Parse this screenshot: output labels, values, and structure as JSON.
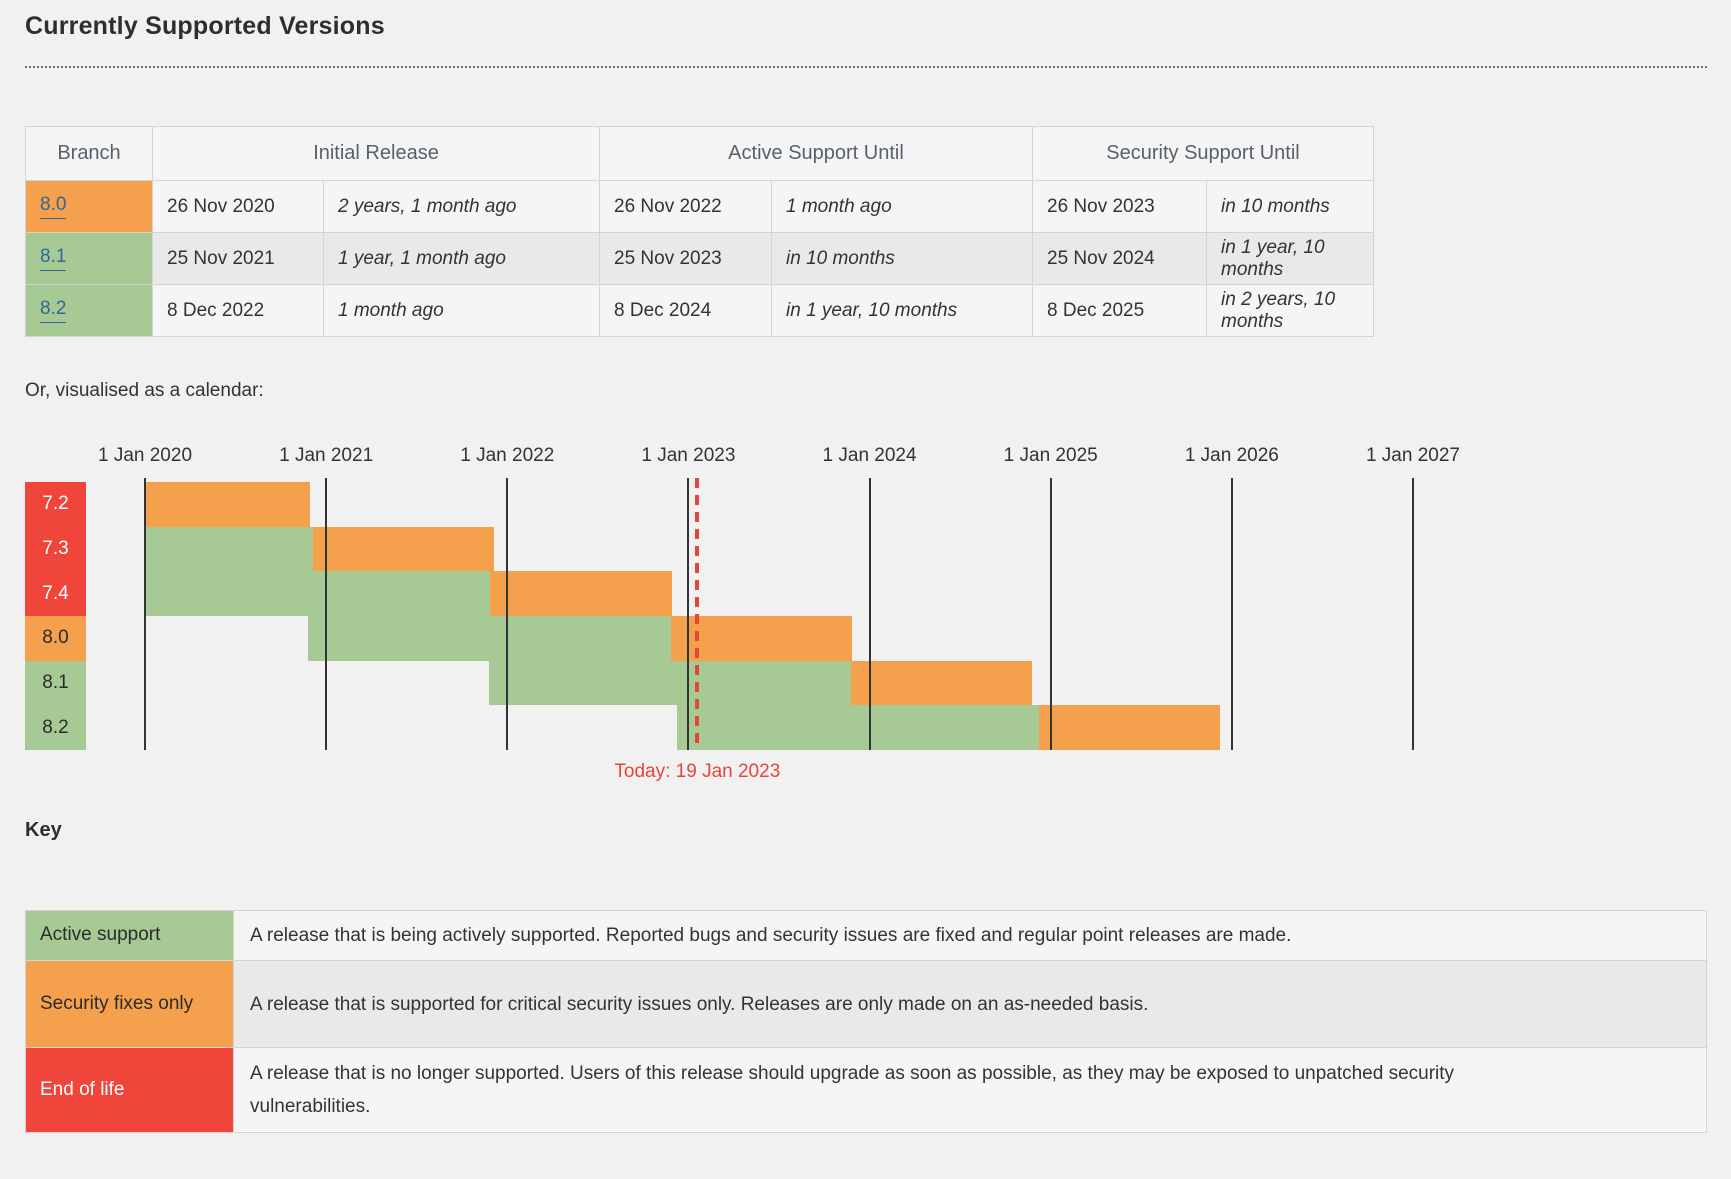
{
  "page": {
    "title": "Currently Supported Versions",
    "calendar_intro": "Or, visualised as a calendar:",
    "key_title": "Key"
  },
  "colors": {
    "active": "#a7ca95",
    "security": "#f4a04d",
    "eol": "#ef453b",
    "link_blue": "#336699",
    "today_red": "#e8453a",
    "label_dark_text": "#2b2b2b",
    "label_light_text": "#ffffff"
  },
  "support_table": {
    "headers": {
      "branch": "Branch",
      "initial": "Initial Release",
      "active": "Active Support Until",
      "security": "Security Support Until"
    },
    "rows": [
      {
        "branch": "8.0",
        "status": "security",
        "initial_date": "26 Nov 2020",
        "initial_rel": "2 years, 1 month ago",
        "active_date": "26 Nov 2022",
        "active_rel": "1 month ago",
        "security_date": "26 Nov 2023",
        "security_rel": "in 10 months"
      },
      {
        "branch": "8.1",
        "status": "active",
        "initial_date": "25 Nov 2021",
        "initial_rel": "1 year, 1 month ago",
        "active_date": "25 Nov 2023",
        "active_rel": "in 10 months",
        "security_date": "25 Nov 2024",
        "security_rel": "in 1 year, 10 months"
      },
      {
        "branch": "8.2",
        "status": "active",
        "initial_date": "8 Dec 2022",
        "initial_rel": "1 month ago",
        "active_date": "8 Dec 2024",
        "active_rel": "in 1 year, 10 months",
        "security_date": "8 Dec 2025",
        "security_rel": "in 2 years, 10 months"
      }
    ]
  },
  "chart_data": {
    "type": "gantt",
    "title": "PHP supported versions calendar",
    "x_ticks": [
      "1 Jan 2020",
      "1 Jan 2021",
      "1 Jan 2022",
      "1 Jan 2023",
      "1 Jan 2024",
      "1 Jan 2025",
      "1 Jan 2026",
      "1 Jan 2027"
    ],
    "axis_start_year": 2020,
    "axis_end_year": 2027,
    "today": {
      "date": "2023-01-19",
      "label": "Today: 19 Jan 2023"
    },
    "legend": {
      "active": "Active support",
      "security": "Security fixes only",
      "eol": "End of life"
    },
    "branches": [
      {
        "label": "7.2",
        "status": "eol",
        "release": "2017-11-30",
        "active_until": "2019-11-30",
        "security_until": "2020-11-30"
      },
      {
        "label": "7.3",
        "status": "eol",
        "release": "2018-12-06",
        "active_until": "2020-12-06",
        "security_until": "2021-12-06"
      },
      {
        "label": "7.4",
        "status": "eol",
        "release": "2019-11-28",
        "active_until": "2021-11-28",
        "security_until": "2022-11-28"
      },
      {
        "label": "8.0",
        "status": "security",
        "release": "2020-11-26",
        "active_until": "2022-11-26",
        "security_until": "2023-11-26"
      },
      {
        "label": "8.1",
        "status": "active",
        "release": "2021-11-25",
        "active_until": "2023-11-25",
        "security_until": "2024-11-25"
      },
      {
        "label": "8.2",
        "status": "active",
        "release": "2022-12-08",
        "active_until": "2024-12-08",
        "security_until": "2025-12-08"
      }
    ]
  },
  "key_table": {
    "rows": [
      {
        "status": "active",
        "label": "Active support",
        "description": "A release that is being actively supported. Reported bugs and security issues are fixed and regular point releases are made."
      },
      {
        "status": "security",
        "label": "Security fixes only",
        "description": "A release that is supported for critical security issues only. Releases are only made on an as-needed basis."
      },
      {
        "status": "eol",
        "label": "End of life",
        "description": "A release that is no longer supported. Users of this release should upgrade as soon as possible, as they may be exposed to unpatched security vulnerabilities."
      }
    ]
  }
}
